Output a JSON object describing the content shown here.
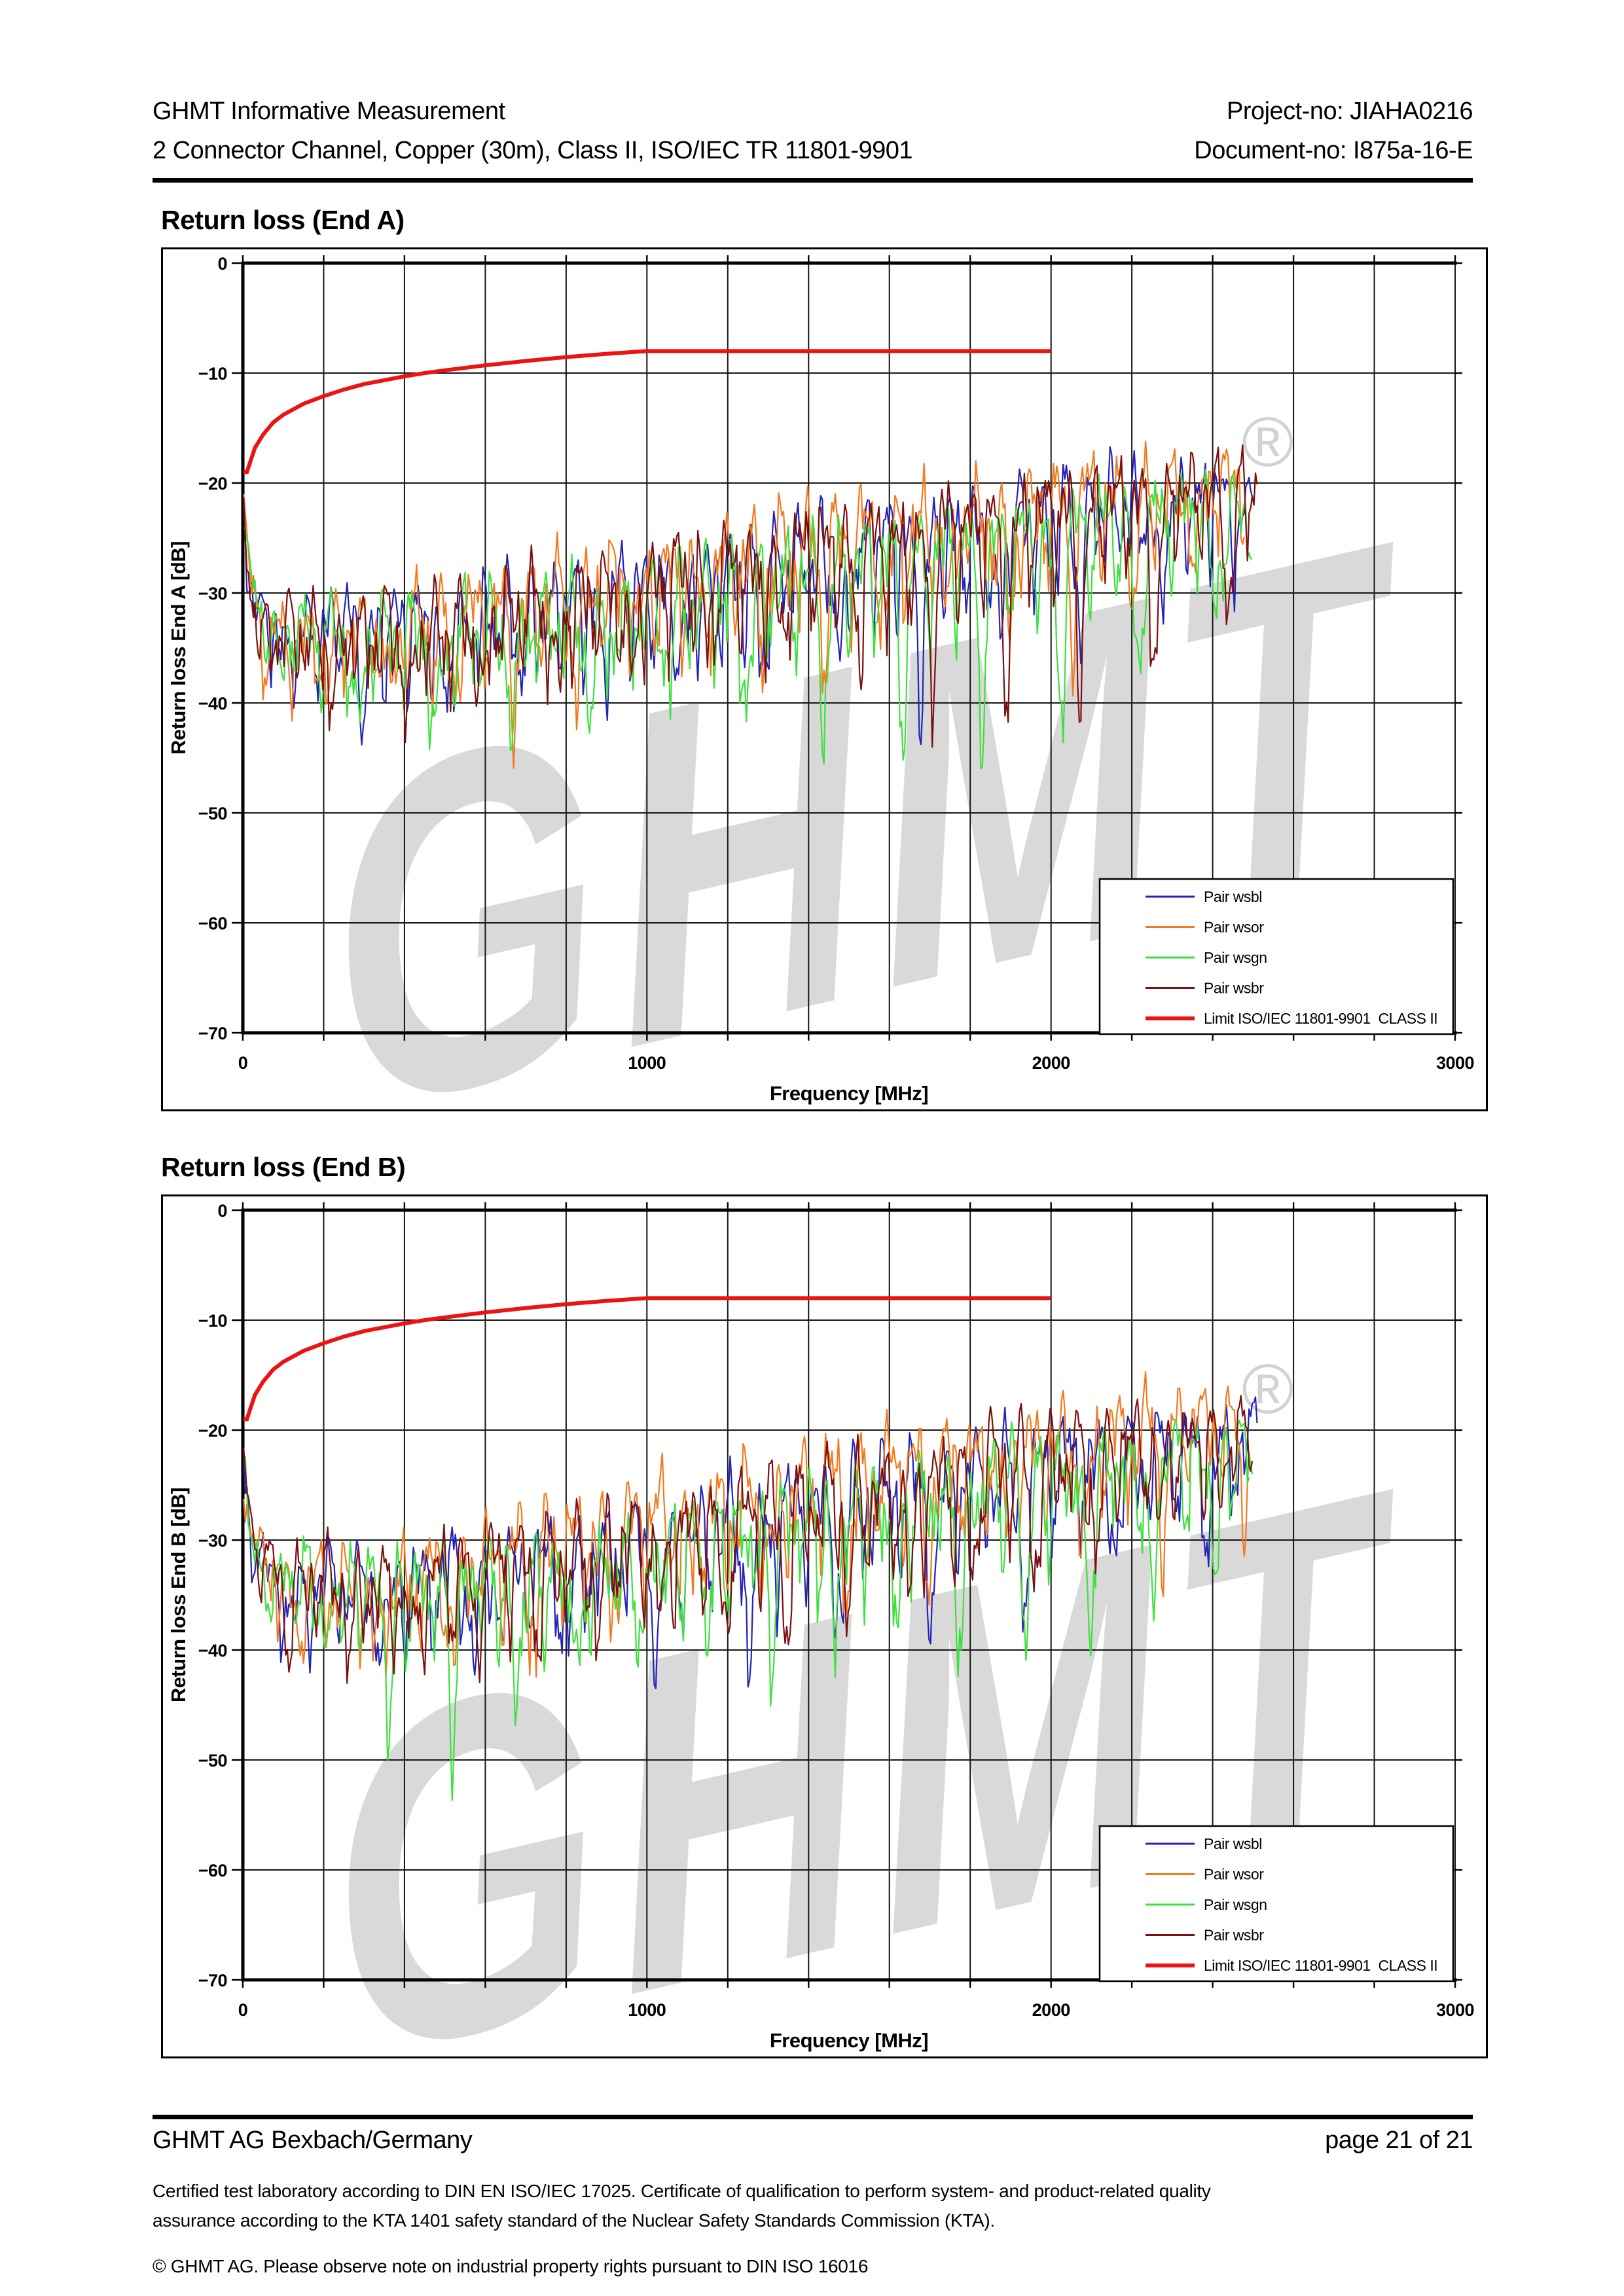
{
  "header": {
    "left_line1": "GHMT Informative Measurement",
    "right_line1": "Project-no: JIAHA0216",
    "left_line2": "2 Connector Channel, Copper (30m), Class II, ISO/IEC TR 11801-9901",
    "right_line2": "Document-no: I875a-16-E"
  },
  "watermark": {
    "text": "GHMT",
    "registered": "®",
    "color": "#d9d9d9"
  },
  "footer": {
    "company": "GHMT AG Bexbach/Germany",
    "page_info": "page 21 of 21",
    "cert_line1": "Certified test laboratory according to DIN EN ISO/IEC 17025. Certificate of qualification to perform system- and product-related quality",
    "cert_line2": "assurance according to the KTA 1401 safety standard of the Nuclear Safety Standards Commission (KTA).",
    "copyright": "© GHMT AG. Please observe note on industrial property rights pursuant to DIN ISO 16016"
  },
  "chart_data": [
    {
      "type": "line",
      "title": "Return loss (End A)",
      "xlabel": "Frequency [MHz]",
      "ylabel": "Return loss End A [dB]",
      "xlim": [
        0,
        3000
      ],
      "ylim": [
        -70,
        0
      ],
      "x_ticks": [
        0,
        1000,
        2000,
        3000
      ],
      "y_ticks": [
        0,
        -10,
        -20,
        -30,
        -40,
        -50,
        -60,
        -70
      ],
      "x_grid_step": 200,
      "y_grid_step": 10,
      "grid": true,
      "legend_position": "bottom-right",
      "limit": {
        "name": "Limit ISO/IEC 11801-9901  CLASS II",
        "color": "#ec1313",
        "width": 6,
        "points": [
          [
            1,
            -19
          ],
          [
            10,
            -19
          ],
          [
            20,
            -17.9
          ],
          [
            30,
            -16.8
          ],
          [
            50,
            -15.6
          ],
          [
            75,
            -14.5
          ],
          [
            100,
            -13.8
          ],
          [
            150,
            -12.8
          ],
          [
            200,
            -12.1
          ],
          [
            250,
            -11.5
          ],
          [
            300,
            -11.0
          ],
          [
            350,
            -10.65
          ],
          [
            400,
            -10.3
          ],
          [
            450,
            -10.0
          ],
          [
            500,
            -9.75
          ],
          [
            600,
            -9.3
          ],
          [
            700,
            -8.9
          ],
          [
            800,
            -8.55
          ],
          [
            900,
            -8.25
          ],
          [
            1000,
            -8
          ],
          [
            2000,
            -8
          ]
        ]
      },
      "series": [
        {
          "name": "Pair wsbl",
          "color": "#2323b8",
          "seed": 7,
          "trend_offset": 0,
          "dip_scale": 1.0,
          "fmax": 2500
        },
        {
          "name": "Pair wsor",
          "color": "#f5791d",
          "seed": 13,
          "trend_offset": 1.3,
          "dip_scale": 1.05,
          "fmax": 2480
        },
        {
          "name": "Pair wsgn",
          "color": "#3fdf3f",
          "seed": 21,
          "trend_offset": -1.3,
          "dip_scale": 1.4,
          "fmax": 2500
        },
        {
          "name": "Pair wsbr",
          "color": "#7a1010",
          "seed": 29,
          "trend_offset": 0.6,
          "dip_scale": 1.25,
          "fmax": 2510
        }
      ],
      "trend": [
        [
          2,
          -22
        ],
        [
          15,
          -28
        ],
        [
          40,
          -31.5
        ],
        [
          100,
          -33
        ],
        [
          300,
          -33.5
        ],
        [
          500,
          -33
        ],
        [
          700,
          -32
        ],
        [
          900,
          -30.5
        ],
        [
          1100,
          -29
        ],
        [
          1300,
          -27.5
        ],
        [
          1500,
          -26.3
        ],
        [
          1700,
          -25
        ],
        [
          1900,
          -23.8
        ],
        [
          2100,
          -22.5
        ],
        [
          2300,
          -21.5
        ],
        [
          2500,
          -21
        ]
      ],
      "ripple": [
        [
          2,
          2.5
        ],
        [
          100,
          4
        ],
        [
          400,
          4.8
        ],
        [
          800,
          5.2
        ],
        [
          1200,
          5.6
        ],
        [
          1600,
          5.6
        ],
        [
          2000,
          5.2
        ],
        [
          2500,
          4.4
        ]
      ],
      "dip_envelope": [
        [
          2,
          2
        ],
        [
          300,
          6.5
        ],
        [
          700,
          7.5
        ],
        [
          1200,
          8.5
        ],
        [
          1800,
          9.5
        ],
        [
          2200,
          10.5
        ],
        [
          2500,
          8
        ]
      ]
    },
    {
      "type": "line",
      "title": "Return loss (End B)",
      "xlabel": "Frequency [MHz]",
      "ylabel": "Return loss End B [dB]",
      "xlim": [
        0,
        3000
      ],
      "ylim": [
        -70,
        0
      ],
      "x_ticks": [
        0,
        1000,
        2000,
        3000
      ],
      "y_ticks": [
        0,
        -10,
        -20,
        -30,
        -40,
        -50,
        -60,
        -70
      ],
      "x_grid_step": 200,
      "y_grid_step": 10,
      "grid": true,
      "legend_position": "bottom-right",
      "limit": {
        "name": "Limit ISO/IEC 11801-9901  CLASS II",
        "color": "#ec1313",
        "width": 6,
        "points": [
          [
            1,
            -19
          ],
          [
            10,
            -19
          ],
          [
            20,
            -17.9
          ],
          [
            30,
            -16.8
          ],
          [
            50,
            -15.6
          ],
          [
            75,
            -14.5
          ],
          [
            100,
            -13.8
          ],
          [
            150,
            -12.8
          ],
          [
            200,
            -12.1
          ],
          [
            250,
            -11.5
          ],
          [
            300,
            -11.0
          ],
          [
            350,
            -10.65
          ],
          [
            400,
            -10.3
          ],
          [
            450,
            -10.0
          ],
          [
            500,
            -9.75
          ],
          [
            600,
            -9.3
          ],
          [
            700,
            -8.9
          ],
          [
            800,
            -8.55
          ],
          [
            900,
            -8.25
          ],
          [
            1000,
            -8
          ],
          [
            2000,
            -8
          ]
        ]
      },
      "series": [
        {
          "name": "Pair wsbl",
          "color": "#2323b8",
          "seed": 41,
          "trend_offset": 0,
          "dip_scale": 1.05,
          "fmax": 2510
        },
        {
          "name": "Pair wsor",
          "color": "#f5791d",
          "seed": 47,
          "trend_offset": 2.2,
          "dip_scale": 0.95,
          "fmax": 2490
        },
        {
          "name": "Pair wsgn",
          "color": "#3fdf3f",
          "seed": 53,
          "trend_offset": -1.0,
          "dip_scale": 1.5,
          "fmax": 2500
        },
        {
          "name": "Pair wsbr",
          "color": "#7a1010",
          "seed": 61,
          "trend_offset": 0.5,
          "dip_scale": 1.2,
          "fmax": 2500
        }
      ],
      "trend": [
        [
          2,
          -22
        ],
        [
          15,
          -28
        ],
        [
          40,
          -31.5
        ],
        [
          100,
          -33.5
        ],
        [
          300,
          -34
        ],
        [
          500,
          -33.5
        ],
        [
          700,
          -32.5
        ],
        [
          900,
          -31
        ],
        [
          1100,
          -29.5
        ],
        [
          1300,
          -28
        ],
        [
          1500,
          -26.5
        ],
        [
          1700,
          -25
        ],
        [
          1900,
          -23.5
        ],
        [
          2100,
          -22.5
        ],
        [
          2300,
          -21.5
        ],
        [
          2500,
          -21
        ]
      ],
      "ripple": [
        [
          2,
          2.5
        ],
        [
          100,
          4
        ],
        [
          400,
          4.8
        ],
        [
          800,
          5.2
        ],
        [
          1200,
          5.6
        ],
        [
          1600,
          5.6
        ],
        [
          2000,
          5.2
        ],
        [
          2500,
          4.4
        ]
      ],
      "dip_envelope": [
        [
          2,
          2
        ],
        [
          300,
          6.5
        ],
        [
          700,
          8
        ],
        [
          1200,
          9
        ],
        [
          1800,
          9.5
        ],
        [
          2200,
          10.5
        ],
        [
          2500,
          8
        ]
      ]
    }
  ]
}
